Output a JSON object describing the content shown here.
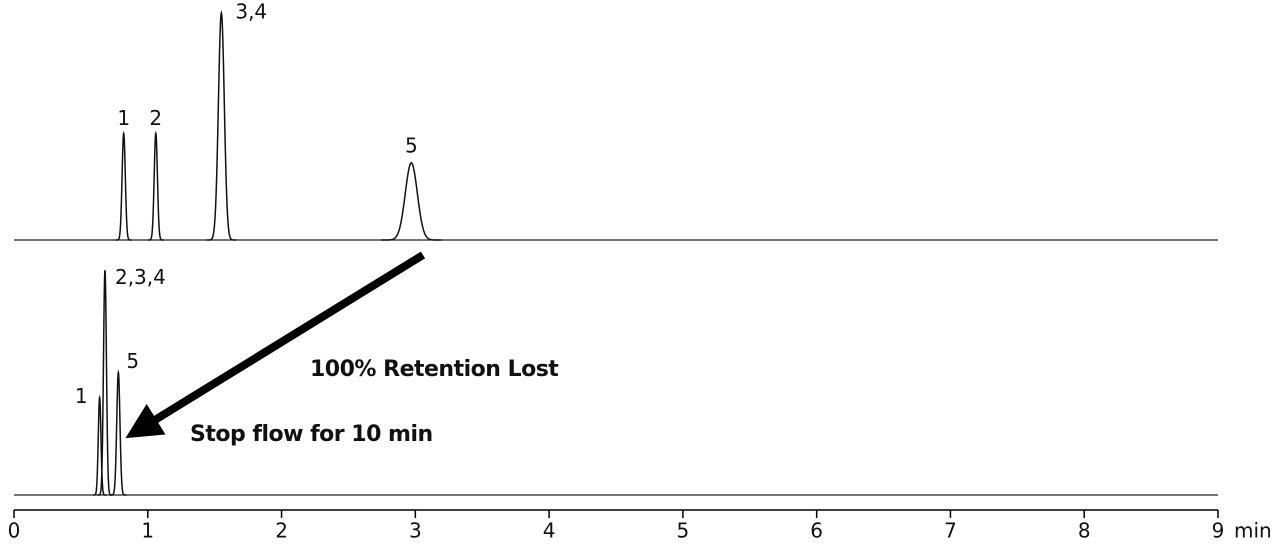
{
  "chart_data": {
    "type": "chromatogram",
    "xlim": [
      0,
      9
    ],
    "xticks": [
      0,
      1,
      2,
      3,
      4,
      5,
      6,
      7,
      8,
      9
    ],
    "x_label": "min",
    "annotations": [
      "100% Retention Lost",
      "Stop flow for 10 min"
    ],
    "traces": [
      {
        "ylim": [
          0,
          100
        ],
        "peaks": [
          {
            "label": "1",
            "time": 0.82,
            "height": 47,
            "width": 0.012
          },
          {
            "label": "2",
            "time": 1.06,
            "height": 47,
            "width": 0.012
          },
          {
            "label": "3,4",
            "time": 1.55,
            "height": 100,
            "width": 0.022
          },
          {
            "label": "5",
            "time": 2.97,
            "height": 34,
            "width": 0.045
          }
        ]
      },
      {
        "ylim": [
          0,
          100
        ],
        "peaks": [
          {
            "label": "1",
            "time": 0.64,
            "height": 43,
            "width": 0.01
          },
          {
            "label": "2,3,4",
            "time": 0.68,
            "height": 99,
            "width": 0.011
          },
          {
            "label": "5",
            "time": 0.78,
            "height": 54,
            "width": 0.012
          }
        ]
      }
    ]
  }
}
